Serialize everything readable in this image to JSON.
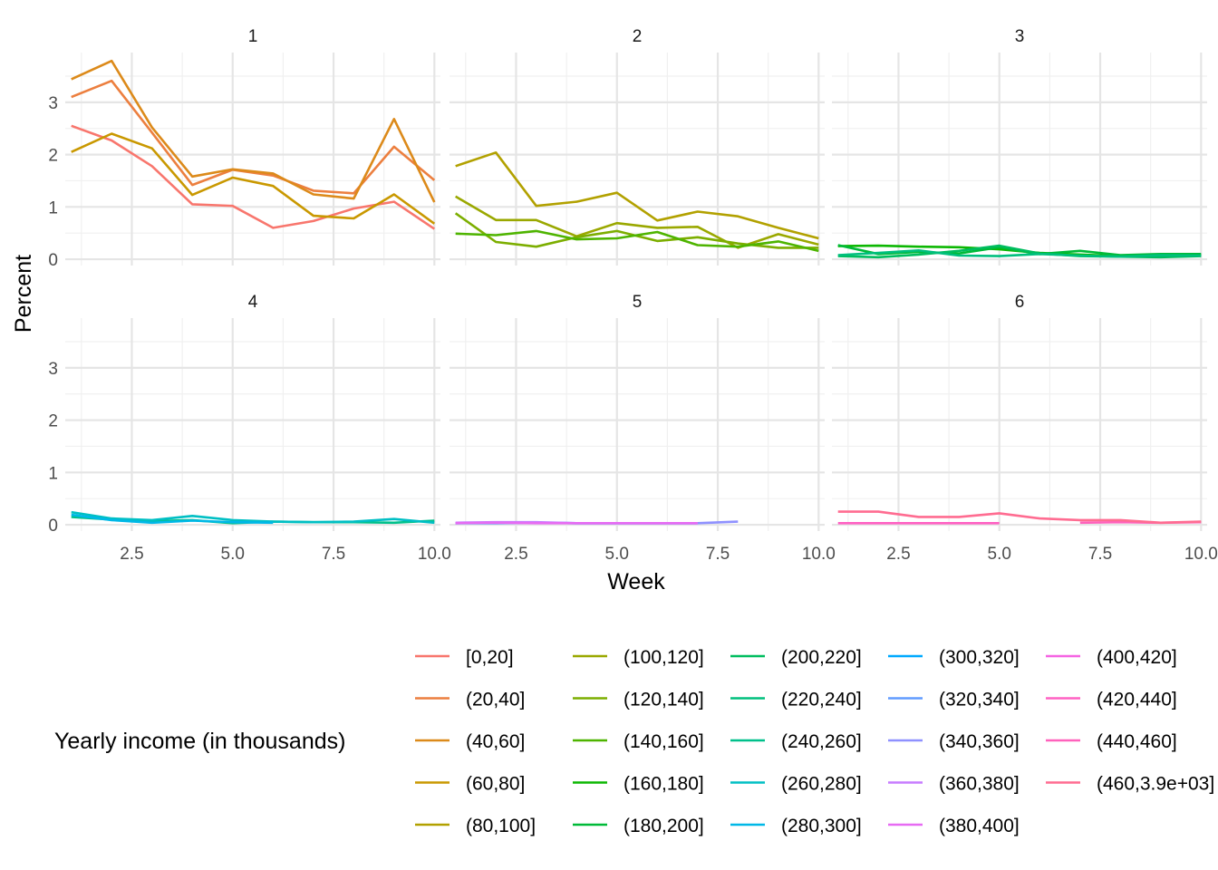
{
  "chart_data": {
    "type": "line",
    "xlabel": "Week",
    "ylabel": "Percent",
    "xlim": [
      0.85,
      10.15
    ],
    "ylim": [
      -0.12,
      3.95
    ],
    "x_ticks": [
      2.5,
      5.0,
      7.5,
      10.0
    ],
    "x_tick_labels": [
      "2.5",
      "5.0",
      "7.5",
      "10.0"
    ],
    "y_ticks": [
      0,
      1,
      2,
      3
    ],
    "y_tick_labels": [
      "0",
      "1",
      "2",
      "3"
    ],
    "grid": true,
    "facet_layout": {
      "rows": 2,
      "cols": 3
    },
    "legend": {
      "title": "Yearly income (in thousands)",
      "placement": "bottom",
      "entries": [
        {
          "label": "[0,20]",
          "color": "#F8766D"
        },
        {
          "label": "(20,40]",
          "color": "#EC7F3F"
        },
        {
          "label": "(40,60]",
          "color": "#DC8A1A"
        },
        {
          "label": "(60,80]",
          "color": "#C99800"
        },
        {
          "label": "(80,100]",
          "color": "#B2A100"
        },
        {
          "label": "(100,120]",
          "color": "#9AA800"
        },
        {
          "label": "(120,140]",
          "color": "#7CAE00"
        },
        {
          "label": "(140,160]",
          "color": "#4EB400"
        },
        {
          "label": "(160,180]",
          "color": "#0CB702"
        },
        {
          "label": "(180,200]",
          "color": "#00BA38"
        },
        {
          "label": "(200,220]",
          "color": "#00BD5F"
        },
        {
          "label": "(220,240]",
          "color": "#00BF7D"
        },
        {
          "label": "(240,260]",
          "color": "#00C08B"
        },
        {
          "label": "(260,280]",
          "color": "#00BFC4"
        },
        {
          "label": "(280,300]",
          "color": "#00B8E7"
        },
        {
          "label": "(300,320]",
          "color": "#00A9FF"
        },
        {
          "label": "(320,340]",
          "color": "#619CFF"
        },
        {
          "label": "(340,360]",
          "color": "#8F91FF"
        },
        {
          "label": "(360,380]",
          "color": "#C77CFF"
        },
        {
          "label": "(380,400]",
          "color": "#E76BF3"
        },
        {
          "label": "(400,420]",
          "color": "#F564E3"
        },
        {
          "label": "(420,440]",
          "color": "#FF61C3"
        },
        {
          "label": "(440,460]",
          "color": "#FF62BC"
        },
        {
          "label": "(460,3.9e+03]",
          "color": "#FF6C91"
        }
      ]
    },
    "panels": [
      {
        "label": "1",
        "series": [
          {
            "name": "[0,20]",
            "color": "#F8766D",
            "x": [
              1,
              2,
              3,
              4,
              5,
              6,
              7,
              8,
              9,
              10
            ],
            "y": [
              2.55,
              2.27,
              1.78,
              1.05,
              1.02,
              0.6,
              0.73,
              0.97,
              1.1,
              0.58
            ]
          },
          {
            "name": "(20,40]",
            "color": "#EC7F3F",
            "x": [
              1,
              2,
              3,
              4,
              5,
              6,
              7,
              8,
              9,
              10
            ],
            "y": [
              3.1,
              3.41,
              2.42,
              1.42,
              1.71,
              1.6,
              1.31,
              1.26,
              2.15,
              1.51
            ]
          },
          {
            "name": "(40,60]",
            "color": "#DC8A1A",
            "x": [
              1,
              2,
              3,
              4,
              5,
              6,
              7,
              8,
              9,
              10
            ],
            "y": [
              3.44,
              3.79,
              2.52,
              1.58,
              1.72,
              1.64,
              1.24,
              1.16,
              2.68,
              1.09
            ]
          },
          {
            "name": "(60,80]",
            "color": "#C99800",
            "x": [
              1,
              2,
              3,
              4,
              5,
              6,
              7,
              8,
              9,
              10
            ],
            "y": [
              2.05,
              2.4,
              2.12,
              1.23,
              1.56,
              1.4,
              0.83,
              0.78,
              1.24,
              0.68
            ]
          }
        ]
      },
      {
        "label": "2",
        "series": [
          {
            "name": "(80,100]",
            "color": "#B2A100",
            "x": [
              1,
              2,
              3,
              4,
              5,
              6,
              7,
              8,
              9,
              10
            ],
            "y": [
              1.78,
              2.04,
              1.02,
              1.1,
              1.27,
              0.74,
              0.91,
              0.82,
              0.6,
              0.4
            ]
          },
          {
            "name": "(100,120]",
            "color": "#9AA800",
            "x": [
              1,
              2,
              3,
              4,
              5,
              6,
              7,
              8,
              9,
              10
            ],
            "y": [
              1.2,
              0.75,
              0.75,
              0.44,
              0.69,
              0.6,
              0.62,
              0.22,
              0.48,
              0.28
            ]
          },
          {
            "name": "(120,140]",
            "color": "#7CAE00",
            "x": [
              1,
              2,
              3,
              4,
              5,
              6,
              7,
              8,
              9,
              10
            ],
            "y": [
              0.88,
              0.33,
              0.24,
              0.42,
              0.54,
              0.35,
              0.42,
              0.3,
              0.22,
              0.22
            ]
          },
          {
            "name": "(140,160]",
            "color": "#4EB400",
            "x": [
              1,
              2,
              3,
              4,
              5,
              6,
              7,
              8,
              9,
              10
            ],
            "y": [
              0.49,
              0.46,
              0.54,
              0.38,
              0.4,
              0.52,
              0.27,
              0.24,
              0.34,
              0.16
            ]
          }
        ]
      },
      {
        "label": "3",
        "series": [
          {
            "name": "(160,180]",
            "color": "#0CB702",
            "x": [
              1,
              2,
              3,
              4,
              5,
              6,
              7,
              8,
              9,
              10
            ],
            "y": [
              0.25,
              0.26,
              0.24,
              0.23,
              0.19,
              0.12,
              0.09,
              0.06,
              0.07,
              0.08
            ]
          },
          {
            "name": "(180,200]",
            "color": "#00BA38",
            "x": [
              1,
              2,
              3,
              4,
              5,
              6,
              7,
              8,
              9,
              10
            ],
            "y": [
              0.27,
              0.1,
              0.14,
              0.11,
              0.23,
              0.1,
              0.16,
              0.08,
              0.1,
              0.1
            ]
          },
          {
            "name": "(200,220]",
            "color": "#00BD5F",
            "x": [
              1,
              2,
              3,
              4,
              5,
              6,
              7,
              8,
              9,
              10
            ],
            "y": [
              0.06,
              0.04,
              0.09,
              0.16,
              0.26,
              0.11,
              0.06,
              0.05,
              0.04,
              0.06
            ]
          },
          {
            "name": "(220,240]",
            "color": "#00BF7D",
            "x": [
              1,
              2,
              3,
              4,
              5,
              6,
              7,
              8,
              9,
              10
            ],
            "y": [
              0.08,
              0.12,
              0.17,
              0.07,
              0.06,
              0.1,
              0.07,
              0.05,
              0.08,
              0.07
            ]
          }
        ]
      },
      {
        "label": "4",
        "series": [
          {
            "name": "(240,260]",
            "color": "#00C08B",
            "x": [
              1,
              2,
              3,
              4,
              5,
              6,
              7,
              8,
              9,
              10
            ],
            "y": [
              0.15,
              0.1,
              0.07,
              0.09,
              0.03,
              0.06,
              0.05,
              0.05,
              0.04,
              0.08
            ]
          },
          {
            "name": "(260,280]",
            "color": "#00BFC4",
            "x": [
              1,
              2,
              3,
              4,
              5,
              6,
              7,
              8,
              9,
              10
            ],
            "y": [
              0.24,
              0.12,
              0.09,
              0.17,
              0.09,
              0.06,
              0.05,
              0.06,
              0.11,
              0.04
            ]
          },
          {
            "name": "(280,300]",
            "color": "#00B8E7",
            "x": [
              1,
              2,
              3,
              4,
              5,
              6
            ],
            "y": [
              0.19,
              0.09,
              0.04,
              0.08,
              0.05,
              0.04
            ]
          }
        ]
      },
      {
        "label": "5",
        "series": [
          {
            "name": "(300,320]",
            "color": "#00A9FF",
            "x": [
              1,
              2,
              3,
              4,
              5,
              6,
              7
            ],
            "y": [
              0.03,
              0.03,
              0.04,
              0.03,
              0.03,
              0.03,
              0.03
            ]
          },
          {
            "name": "(340,360]",
            "color": "#8F91FF",
            "x": [
              1,
              2,
              3,
              4,
              5,
              6,
              7,
              8
            ],
            "y": [
              0.03,
              0.04,
              0.04,
              0.03,
              0.03,
              0.03,
              0.03,
              0.06
            ]
          },
          {
            "name": "(360,380]",
            "color": "#C77CFF",
            "x": [
              1,
              2,
              3,
              4,
              5,
              6,
              7
            ],
            "y": [
              0.04,
              0.05,
              0.05,
              0.03,
              0.03,
              0.03,
              0.03
            ]
          },
          {
            "name": "(380,400]",
            "color": "#E76BF3",
            "x": [
              1,
              2,
              3,
              4,
              5,
              6,
              7
            ],
            "y": [
              0.03,
              0.04,
              0.03,
              0.03,
              0.03,
              0.03,
              0.03
            ]
          }
        ]
      },
      {
        "label": "6",
        "series": [
          {
            "name": "(420,440]",
            "color": "#FF61C3",
            "x": [
              1,
              2,
              3,
              4,
              5
            ],
            "y": [
              0.03,
              0.03,
              0.03,
              0.03,
              0.03
            ]
          },
          {
            "name": "(440,460]",
            "color": "#FF62BC",
            "x": [
              7,
              8,
              9,
              10
            ],
            "y": [
              0.04,
              0.05,
              0.04,
              0.05
            ]
          },
          {
            "name": "(460,3.9e+03]",
            "color": "#FF6C91",
            "x": [
              1,
              2,
              3,
              4,
              5,
              6,
              7,
              8,
              9,
              10
            ],
            "y": [
              0.25,
              0.25,
              0.15,
              0.15,
              0.22,
              0.12,
              0.09,
              0.09,
              0.04,
              0.06
            ]
          }
        ]
      }
    ]
  }
}
